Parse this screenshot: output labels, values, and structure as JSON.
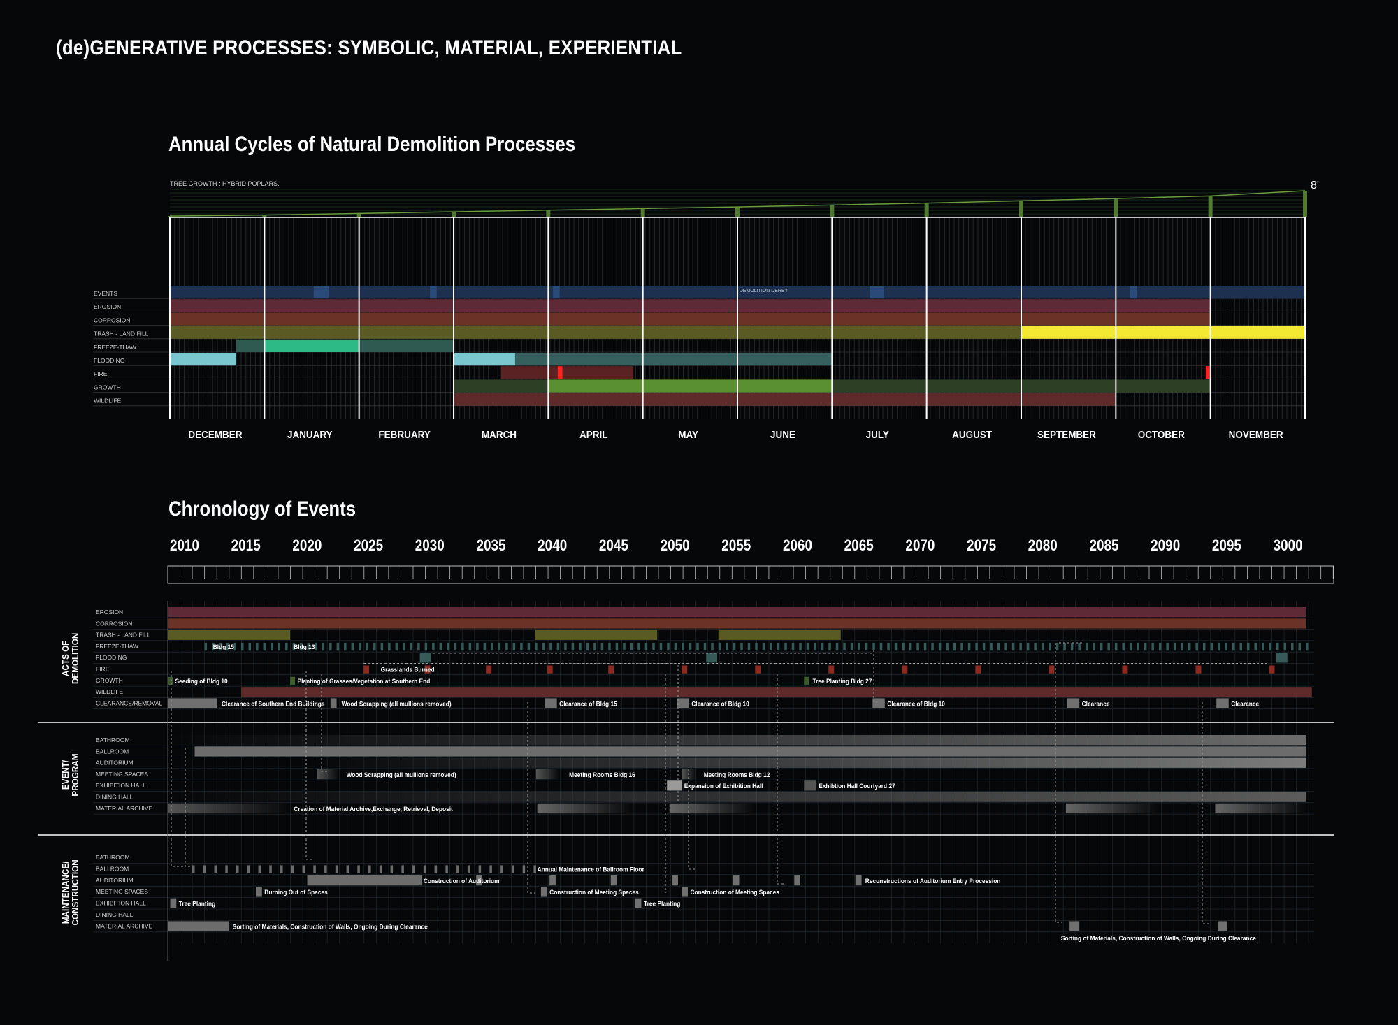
{
  "title": "(de)GENERATIVE PROCESSES: SYMBOLIC, MATERIAL, EXPERIENTIAL",
  "annual": {
    "title": "Annual Cycles of Natural Demolition Processes",
    "tree_label": "TREE GROWTH : HYBRID POPLARS.",
    "tree_max": "8'",
    "tree_heights": [
      0.2,
      0.5,
      1.0,
      1.5,
      2.0,
      2.5,
      3.0,
      3.6,
      4.2,
      4.9,
      5.6,
      6.4,
      8.0
    ],
    "months": [
      "DECEMBER",
      "JANUARY",
      "FEBRUARY",
      "MARCH",
      "APRIL",
      "MAY",
      "JUNE",
      "JULY",
      "AUGUST",
      "SEPTEMBER",
      "OCTOBER",
      "NOVEMBER"
    ],
    "rows": [
      "EVENTS",
      "EROSION",
      "CORROSION",
      "TRASH - LAND FILL",
      "FREEZE-THAW",
      "FLOODING",
      "FIRE",
      "GROWTH",
      "WILDLIFE"
    ],
    "event_label": "DEMOLITION DERBY",
    "bars": [
      {
        "row": 0,
        "start": 0,
        "end": 12,
        "color": "#1e3050"
      },
      {
        "row": 0,
        "start": 1.52,
        "end": 1.68,
        "color": "#2a4a7a"
      },
      {
        "row": 0,
        "start": 2.75,
        "end": 2.82,
        "color": "#2a4a7a"
      },
      {
        "row": 0,
        "start": 4.05,
        "end": 4.12,
        "color": "#2a4a7a"
      },
      {
        "row": 0,
        "start": 7.4,
        "end": 7.55,
        "color": "#2a4a7a"
      },
      {
        "row": 0,
        "start": 10.15,
        "end": 10.22,
        "color": "#2a4a7a"
      },
      {
        "row": 1,
        "start": 0,
        "end": 11,
        "color": "#5e2a36"
      },
      {
        "row": 2,
        "start": 0,
        "end": 11,
        "color": "#6b3327"
      },
      {
        "row": 3,
        "start": 0,
        "end": 9,
        "color": "#5a5a24"
      },
      {
        "row": 3,
        "start": 9,
        "end": 12,
        "color": "#f3e832"
      },
      {
        "row": 4,
        "start": 0.7,
        "end": 1,
        "color": "#2e5a52"
      },
      {
        "row": 4,
        "start": 1,
        "end": 2,
        "color": "#2dba86"
      },
      {
        "row": 4,
        "start": 2,
        "end": 3,
        "color": "#2e5a52"
      },
      {
        "row": 5,
        "start": 0,
        "end": 0.7,
        "color": "#7ac7d0"
      },
      {
        "row": 5,
        "start": 3,
        "end": 3.65,
        "color": "#7ac7d0"
      },
      {
        "row": 5,
        "start": 3.65,
        "end": 7,
        "color": "#36605e"
      },
      {
        "row": 6,
        "start": 3.5,
        "end": 4.9,
        "color": "#5a2222"
      },
      {
        "row": 6,
        "start": 4.1,
        "end": 4.15,
        "color": "#ff2020"
      },
      {
        "row": 6,
        "start": 10.95,
        "end": 10.99,
        "color": "#ff2020"
      },
      {
        "row": 7,
        "start": 3,
        "end": 4,
        "color": "#2d3f24"
      },
      {
        "row": 7,
        "start": 4,
        "end": 7,
        "color": "#5a8f32"
      },
      {
        "row": 7,
        "start": 7,
        "end": 11,
        "color": "#2d3f24"
      },
      {
        "row": 8,
        "start": 3,
        "end": 10,
        "color": "#5e2a2a"
      }
    ]
  },
  "chron": {
    "title": "Chronology of Events",
    "years": [
      "2010",
      "2015",
      "2020",
      "2025",
      "2030",
      "2035",
      "2040",
      "2045",
      "2050",
      "2055",
      "2060",
      "2065",
      "2070",
      "2075",
      "2080",
      "2085",
      "2090",
      "2095",
      "3000"
    ],
    "groups": [
      {
        "label_1": "ACTS OF",
        "label_2": "DEMOLITION",
        "rows": [
          "EROSION",
          "CORROSION",
          "TRASH - LAND FILL",
          "FREEZE-THAW",
          "FLOODING",
          "FIRE",
          "GROWTH",
          "WILDLIFE",
          "CLEARANCE/REMOVAL"
        ]
      },
      {
        "label_1": "EVENT/",
        "label_2": "PROGRAM",
        "rows": [
          "BATHROOM",
          "BALLROOM",
          "AUDITORIUM",
          "MEETING SPACES",
          "EXHIBITION HALL",
          "DINING HALL",
          "MATERIAL ARCHIVE"
        ]
      },
      {
        "label_1": "MAINTENANCE/",
        "label_2": "CONSTRUCTION",
        "rows": [
          "BATHROOM",
          "BALLROOM",
          "AUDITORIUM",
          "MEETING SPACES",
          "EXHIBITION HALL",
          "DINING HALL",
          "MATERIAL ARCHIVE"
        ]
      }
    ],
    "bars": [
      {
        "g": 0,
        "row": 0,
        "start": 2010,
        "end": 2103,
        "color": "#5e2a36"
      },
      {
        "g": 0,
        "row": 1,
        "start": 2010,
        "end": 2103,
        "color": "#6b3327"
      },
      {
        "g": 0,
        "row": 2,
        "start": 2010,
        "end": 2020,
        "color": "#5a5a24"
      },
      {
        "g": 0,
        "row": 2,
        "start": 2040,
        "end": 2050,
        "color": "#5a5a24"
      },
      {
        "g": 0,
        "row": 2,
        "start": 2055,
        "end": 2065,
        "color": "#5a5a24"
      },
      {
        "g": 0,
        "row": 7,
        "start": 2016,
        "end": 2103.5,
        "color": "#5e2a2a"
      },
      {
        "g": 0,
        "row": 8,
        "start": 2010,
        "end": 2014,
        "color": "#707070"
      },
      {
        "g": 0,
        "row": 8,
        "start": 2023.3,
        "end": 2023.8,
        "color": "#707070"
      },
      {
        "g": 0,
        "row": 8,
        "start": 2040.8,
        "end": 2041.8,
        "color": "#707070"
      },
      {
        "g": 0,
        "row": 8,
        "start": 2051.6,
        "end": 2052.6,
        "color": "#707070"
      },
      {
        "g": 0,
        "row": 8,
        "start": 2067.6,
        "end": 2068.6,
        "color": "#707070"
      },
      {
        "g": 0,
        "row": 8,
        "start": 2083.5,
        "end": 2084.5,
        "color": "#707070"
      },
      {
        "g": 0,
        "row": 8,
        "start": 2095.7,
        "end": 2096.7,
        "color": "#707070"
      },
      {
        "g": 0,
        "row": 4,
        "start": 2030.6,
        "end": 2031.5,
        "color": "#355a58"
      },
      {
        "g": 0,
        "row": 4,
        "start": 2054,
        "end": 2054.9,
        "color": "#355a58"
      },
      {
        "g": 0,
        "row": 4,
        "start": 2100.6,
        "end": 2101.5,
        "color": "#355a58"
      },
      {
        "g": 1,
        "row": 0,
        "start": 2010,
        "end": 2103,
        "color": "#6c6c6c",
        "fade": "in"
      },
      {
        "g": 1,
        "row": 1,
        "start": 2012.2,
        "end": 2103,
        "color": "#6c6c6c"
      },
      {
        "g": 1,
        "row": 2,
        "start": 2021.5,
        "end": 2103,
        "color": "#7c7c7c",
        "fade": "in"
      },
      {
        "g": 1,
        "row": 3,
        "start": 2022.2,
        "end": 2024,
        "color": "#555555",
        "fade": "out"
      },
      {
        "g": 1,
        "row": 3,
        "start": 2040.1,
        "end": 2042,
        "color": "#555555",
        "fade": "out"
      },
      {
        "g": 1,
        "row": 3,
        "start": 2052,
        "end": 2053.2,
        "color": "#555555",
        "fade": "out"
      },
      {
        "g": 1,
        "row": 4,
        "start": 2050.8,
        "end": 2052,
        "color": "#9a9a9a"
      },
      {
        "g": 1,
        "row": 4,
        "start": 2062,
        "end": 2063,
        "color": "#555555"
      },
      {
        "g": 1,
        "row": 5,
        "start": 2010,
        "end": 2103,
        "color": "#5c5c5c",
        "fade": "in"
      },
      {
        "g": 1,
        "row": 6,
        "start": 2010,
        "end": 2020,
        "color": "#555555",
        "fade": "out"
      },
      {
        "g": 1,
        "row": 6,
        "start": 2040.2,
        "end": 2048,
        "color": "#666666",
        "fade": "out"
      },
      {
        "g": 1,
        "row": 6,
        "start": 2051,
        "end": 2058,
        "color": "#666666",
        "fade": "out"
      },
      {
        "g": 1,
        "row": 6,
        "start": 2083.4,
        "end": 2091,
        "color": "#666666",
        "fade": "out"
      },
      {
        "g": 1,
        "row": 6,
        "start": 2095.6,
        "end": 2103,
        "color": "#666666",
        "fade": "out"
      },
      {
        "g": 2,
        "row": 2,
        "start": 2021.4,
        "end": 2030.8,
        "color": "#6c6c6c"
      },
      {
        "g": 2,
        "row": 3,
        "start": 2017.2,
        "end": 2017.7,
        "color": "#707070"
      },
      {
        "g": 2,
        "row": 3,
        "start": 2040.5,
        "end": 2041,
        "color": "#707070"
      },
      {
        "g": 2,
        "row": 3,
        "start": 2052,
        "end": 2052.5,
        "color": "#707070"
      },
      {
        "g": 2,
        "row": 4,
        "start": 2010.2,
        "end": 2010.7,
        "color": "#707070"
      },
      {
        "g": 2,
        "row": 4,
        "start": 2048.2,
        "end": 2048.7,
        "color": "#707070"
      },
      {
        "g": 2,
        "row": 6,
        "start": 2010,
        "end": 2015,
        "color": "#6c6c6c"
      },
      {
        "g": 2,
        "row": 6,
        "start": 2083.7,
        "end": 2084.5,
        "color": "#707070"
      },
      {
        "g": 2,
        "row": 6,
        "start": 2095.8,
        "end": 2096.6,
        "color": "#707070"
      },
      {
        "g": 2,
        "row": 2,
        "start": 2035.2,
        "end": 2035.7,
        "color": "#707070"
      },
      {
        "g": 2,
        "row": 2,
        "start": 2041.2,
        "end": 2041.7,
        "color": "#707070"
      },
      {
        "g": 2,
        "row": 2,
        "start": 2046.2,
        "end": 2046.7,
        "color": "#707070"
      },
      {
        "g": 2,
        "row": 2,
        "start": 2051.2,
        "end": 2051.7,
        "color": "#707070"
      },
      {
        "g": 2,
        "row": 2,
        "start": 2056.2,
        "end": 2056.7,
        "color": "#707070"
      },
      {
        "g": 2,
        "row": 2,
        "start": 2061.2,
        "end": 2061.7,
        "color": "#707070"
      },
      {
        "g": 2,
        "row": 2,
        "start": 2066.2,
        "end": 2066.7,
        "color": "#707070"
      }
    ],
    "ticks": [
      {
        "g": 0,
        "row": 3,
        "start": 2013,
        "end": 2103,
        "step": 0.6,
        "color": "#355a58"
      },
      {
        "g": 2,
        "row": 1,
        "start": 2012,
        "end": 2040,
        "step": 0.9,
        "color": "#6c6c6c"
      }
    ],
    "fire_marks": [
      2026,
      2031,
      2036,
      2041,
      2046,
      2052,
      2058,
      2064,
      2070,
      2076,
      2082,
      2088,
      2094,
      2100
    ],
    "growth_marks": [
      2010,
      2020,
      2062
    ],
    "labels": [
      {
        "g": 0,
        "row": 3,
        "year": 2013.7,
        "text": "Bldg 15"
      },
      {
        "g": 0,
        "row": 3,
        "year": 2020.3,
        "text": "Bldg 13"
      },
      {
        "g": 0,
        "row": 5,
        "year": 2027.4,
        "text": "Grasslands Burned"
      },
      {
        "g": 0,
        "row": 6,
        "year": 2010.6,
        "text": "Seeding of Bldg 10"
      },
      {
        "g": 0,
        "row": 6,
        "year": 2020.6,
        "text": "Planting of Grasses/Vegetation at Southern End"
      },
      {
        "g": 0,
        "row": 6,
        "year": 2062.7,
        "text": "Tree Planting Bldg 27"
      },
      {
        "g": 0,
        "row": 8,
        "year": 2014.4,
        "text": "Clearance of Southern End Buildings"
      },
      {
        "g": 0,
        "row": 8,
        "year": 2024.2,
        "text": "Wood Scrapping (all mullions removed)"
      },
      {
        "g": 0,
        "row": 8,
        "year": 2042,
        "text": "Clearance of Bldg 15"
      },
      {
        "g": 0,
        "row": 8,
        "year": 2052.8,
        "text": "Clearance of Bldg 10"
      },
      {
        "g": 0,
        "row": 8,
        "year": 2068.8,
        "text": "Clearance of Bldg 10"
      },
      {
        "g": 0,
        "row": 8,
        "year": 2084.7,
        "text": "Clearance"
      },
      {
        "g": 0,
        "row": 8,
        "year": 2096.9,
        "text": "Clearance"
      },
      {
        "g": 1,
        "row": 3,
        "year": 2024.6,
        "text": "Wood Scrapping (all mullions removed)"
      },
      {
        "g": 1,
        "row": 3,
        "year": 2042.8,
        "text": "Meeting Rooms Bldg 16"
      },
      {
        "g": 1,
        "row": 3,
        "year": 2053.8,
        "text": "Meeting Rooms Bldg 12"
      },
      {
        "g": 1,
        "row": 4,
        "year": 2052.2,
        "text": "Expansion of Exhibition Hall"
      },
      {
        "g": 1,
        "row": 4,
        "year": 2063.2,
        "text": "Exhibtion Hall Courtyard 27"
      },
      {
        "g": 1,
        "row": 6,
        "year": 2020.3,
        "text": "Creation of Material Archive,Exchange, Retrieval, Deposit"
      },
      {
        "g": 2,
        "row": 1,
        "year": 2040.2,
        "text": "Annual Maintenance of Ballroom Floor"
      },
      {
        "g": 2,
        "row": 2,
        "year": 2030.9,
        "text": "Construction of Auditorium"
      },
      {
        "g": 2,
        "row": 2,
        "year": 2067,
        "text": "Reconstructions of Auditorium Entry Procession"
      },
      {
        "g": 2,
        "row": 3,
        "year": 2017.9,
        "text": "Burning Out of Spaces"
      },
      {
        "g": 2,
        "row": 3,
        "year": 2041.2,
        "text": "Construction of Meeting Spaces"
      },
      {
        "g": 2,
        "row": 3,
        "year": 2052.7,
        "text": "Construction of Meeting Spaces"
      },
      {
        "g": 2,
        "row": 4,
        "year": 2010.9,
        "text": "Tree Planting"
      },
      {
        "g": 2,
        "row": 4,
        "year": 2048.9,
        "text": "Tree Planting"
      },
      {
        "g": 2,
        "row": 6,
        "year": 2015.3,
        "text": "Sorting of Materials, Construction of Walls, Ongoing During Clearance"
      },
      {
        "g": 2,
        "row": 7,
        "year": 2083,
        "text": "Sorting of Materials, Construction of Walls, Ongoing During Clearance"
      }
    ]
  }
}
